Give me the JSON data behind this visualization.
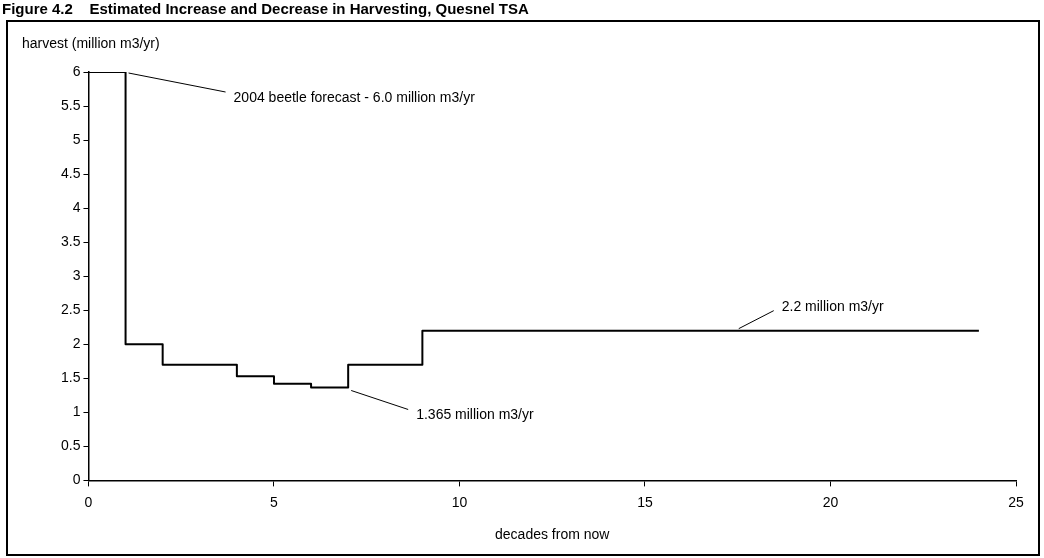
{
  "chart_data": {
    "type": "step",
    "title": "Figure 4.2    Estimated Increase and Decrease in Harvesting, Quesnel TSA",
    "xlabel": "decades from now",
    "ylabel": "harvest (million m3/yr)",
    "series": [
      {
        "color": "#000000",
        "x": [
          0,
          1,
          2,
          4,
          5,
          6,
          7,
          9,
          24
        ],
        "values": [
          6,
          2,
          1.7,
          1.53,
          1.42,
          1.365,
          1.7,
          2.2,
          2.2
        ]
      }
    ],
    "xlim": [
      0,
      25
    ],
    "xticks": [
      0,
      5,
      10,
      15,
      20,
      25
    ],
    "ylim": [
      0,
      6
    ],
    "yticks": [
      0,
      0.5,
      1,
      1.5,
      2,
      2.5,
      3,
      3.5,
      4,
      4.5,
      5,
      5.5,
      6
    ],
    "grid": false,
    "legend": false,
    "marker": "none",
    "line_style": "solid",
    "annotations": [
      {
        "text": "2004 beetle forecast - 6.0 million m3/yr",
        "x": 1,
        "y": 6
      },
      {
        "text": "1.365 million m3/yr",
        "x": 7,
        "y": 1.365
      },
      {
        "text": "2.2 million m3/yr",
        "x": 17.5,
        "y": 2.2
      }
    ]
  }
}
